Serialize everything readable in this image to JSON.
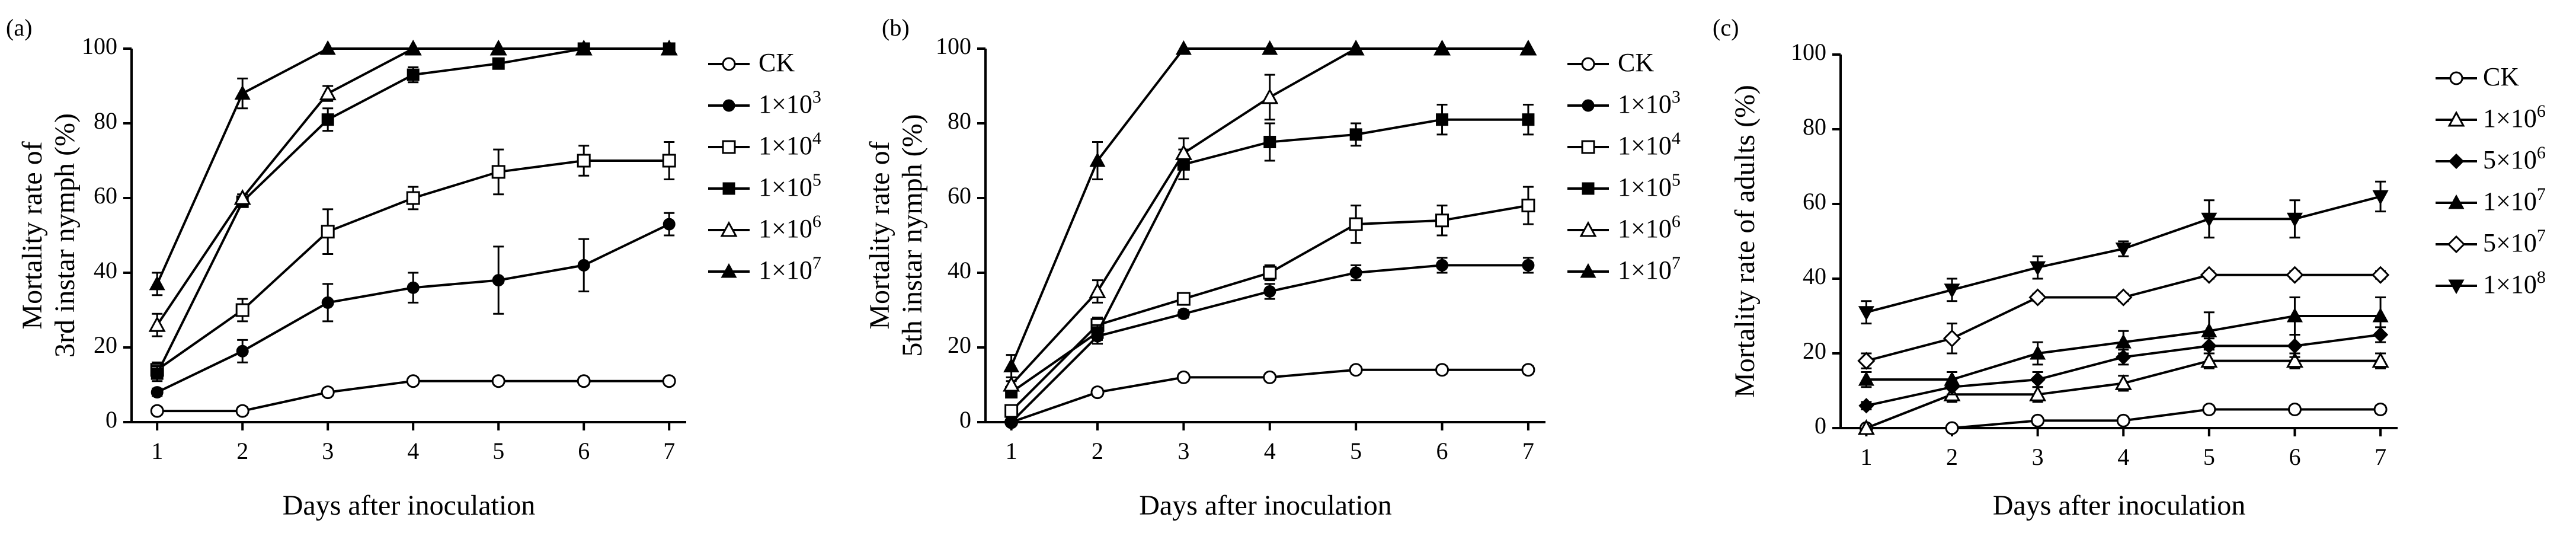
{
  "chart_data": [
    {
      "type": "line",
      "panel_label": "(a)",
      "xlabel": "Days after inoculation",
      "ylabel": "Mortality rate of 3rd instar nymph (%)",
      "ylabel_lines": [
        "Mortality rate of",
        "3rd instar nymph  (%)"
      ],
      "x": [
        1,
        2,
        3,
        4,
        5,
        6,
        7
      ],
      "xticks": [
        "1",
        "2",
        "3",
        "4",
        "5",
        "6",
        "7"
      ],
      "yticks": [
        "0",
        "20",
        "40",
        "60",
        "80",
        "100"
      ],
      "xlim": [
        0.7,
        7.2
      ],
      "ylim": [
        0,
        100
      ],
      "legend_position": "right",
      "series": [
        {
          "name": "CK",
          "label_base": "CK",
          "label_exp": "",
          "marker": "circle-open",
          "values": [
            3,
            3,
            8,
            11,
            11,
            11,
            11
          ],
          "errors": [
            1,
            1,
            1,
            1,
            1,
            1,
            1
          ]
        },
        {
          "name": "1×10³",
          "label_base": "1×10",
          "label_exp": "3",
          "marker": "circle-filled",
          "values": [
            8,
            19,
            32,
            36,
            38,
            42,
            53
          ],
          "errors": [
            1,
            3,
            5,
            4,
            9,
            7,
            3
          ]
        },
        {
          "name": "1×10⁴",
          "label_base": "1×10",
          "label_exp": "4",
          "marker": "square-open",
          "values": [
            14,
            30,
            51,
            60,
            67,
            70,
            70
          ],
          "errors": [
            2,
            3,
            6,
            3,
            6,
            4,
            5
          ]
        },
        {
          "name": "1×10⁵",
          "label_base": "1×10",
          "label_exp": "5",
          "marker": "square-filled",
          "values": [
            13,
            59,
            81,
            93,
            96,
            100,
            100
          ],
          "errors": [
            2,
            1,
            3,
            2,
            1,
            0,
            0
          ]
        },
        {
          "name": "1×10⁶",
          "label_base": "1×10",
          "label_exp": "6",
          "marker": "triangle-open",
          "values": [
            26,
            60,
            88,
            100,
            100,
            100,
            100
          ],
          "errors": [
            3,
            1,
            2,
            0,
            0,
            0,
            0
          ]
        },
        {
          "name": "1×10⁷",
          "label_base": "1×10",
          "label_exp": "7",
          "marker": "triangle-filled",
          "values": [
            37,
            88,
            100,
            100,
            100,
            100,
            100
          ],
          "errors": [
            3,
            4,
            0,
            0,
            0,
            0,
            0
          ]
        }
      ]
    },
    {
      "type": "line",
      "panel_label": "(b)",
      "xlabel": "Days after inoculation",
      "ylabel": "Mortality rate of 5th instar nymph (%)",
      "ylabel_lines": [
        "Mortality rate of",
        "5th instar nymph  (%)"
      ],
      "x": [
        1,
        2,
        3,
        4,
        5,
        6,
        7
      ],
      "xticks": [
        "1",
        "2",
        "3",
        "4",
        "5",
        "6",
        "7"
      ],
      "yticks": [
        "0",
        "20",
        "40",
        "60",
        "80",
        "100"
      ],
      "xlim": [
        0.7,
        7.2
      ],
      "ylim": [
        0,
        100
      ],
      "legend_position": "right",
      "series": [
        {
          "name": "CK",
          "label_base": "CK",
          "label_exp": "",
          "marker": "circle-open",
          "values": [
            0,
            8,
            12,
            12,
            14,
            14,
            14
          ],
          "errors": [
            0,
            1,
            1,
            1,
            1,
            1,
            1
          ]
        },
        {
          "name": "1×10³",
          "label_base": "1×10",
          "label_exp": "3",
          "marker": "circle-filled",
          "values": [
            0,
            23,
            29,
            35,
            40,
            42,
            42
          ],
          "errors": [
            0,
            2,
            1,
            2,
            2,
            2,
            2
          ]
        },
        {
          "name": "1×10⁴",
          "label_base": "1×10",
          "label_exp": "4",
          "marker": "square-open",
          "values": [
            3,
            26,
            33,
            40,
            53,
            54,
            58
          ],
          "errors": [
            1,
            2,
            1,
            2,
            5,
            4,
            5
          ]
        },
        {
          "name": "1×10⁵",
          "label_base": "1×10",
          "label_exp": "5",
          "marker": "square-filled",
          "values": [
            8,
            24,
            69,
            75,
            77,
            81,
            81
          ],
          "errors": [
            1,
            2,
            4,
            5,
            3,
            4,
            4
          ]
        },
        {
          "name": "1×10⁶",
          "label_base": "1×10",
          "label_exp": "6",
          "marker": "triangle-open",
          "values": [
            10,
            35,
            72,
            87,
            100,
            100,
            100
          ],
          "errors": [
            1,
            3,
            4,
            6,
            0,
            0,
            0
          ]
        },
        {
          "name": "1×10⁷",
          "label_base": "1×10",
          "label_exp": "7",
          "marker": "triangle-filled",
          "values": [
            15,
            70,
            100,
            100,
            100,
            100,
            100
          ],
          "errors": [
            3,
            5,
            0,
            0,
            0,
            0,
            0
          ]
        }
      ]
    },
    {
      "type": "line",
      "panel_label": "(c)",
      "xlabel": "Days after inoculation",
      "ylabel": "Mortality rate of adults (%)",
      "ylabel_lines": [
        "Mortality rate of adults  (%)"
      ],
      "x": [
        1,
        2,
        3,
        4,
        5,
        6,
        7
      ],
      "xticks": [
        "1",
        "2",
        "3",
        "4",
        "5",
        "6",
        "7"
      ],
      "yticks": [
        "0",
        "20",
        "40",
        "60",
        "80",
        "100"
      ],
      "xlim": [
        0.7,
        7.2
      ],
      "ylim": [
        0,
        100
      ],
      "legend_position": "right",
      "series": [
        {
          "name": "CK",
          "label_base": "CK",
          "label_exp": "",
          "marker": "circle-open",
          "values": [
            0,
            0,
            2,
            2,
            5,
            5,
            5
          ],
          "errors": [
            0,
            0,
            1,
            1,
            1,
            1,
            1
          ]
        },
        {
          "name": "1×10⁶",
          "label_base": "1×10",
          "label_exp": "6",
          "marker": "triangle-open",
          "values": [
            0,
            9,
            9,
            12,
            18,
            18,
            18
          ],
          "errors": [
            0,
            2,
            2,
            2,
            2,
            2,
            2
          ]
        },
        {
          "name": "5×10⁶",
          "label_base": "5×10",
          "label_exp": "6",
          "marker": "diamond-filled",
          "values": [
            6,
            11,
            13,
            19,
            22,
            22,
            25
          ],
          "errors": [
            1,
            2,
            2,
            2,
            2,
            3,
            2
          ]
        },
        {
          "name": "1×10⁷",
          "label_base": "1×10",
          "label_exp": "7",
          "marker": "triangle-filled",
          "values": [
            13,
            13,
            20,
            23,
            26,
            30,
            30
          ],
          "errors": [
            2,
            2,
            3,
            3,
            5,
            5,
            5
          ]
        },
        {
          "name": "5×10⁷",
          "label_base": "5×10",
          "label_exp": "7",
          "marker": "diamond-open",
          "values": [
            18,
            24,
            35,
            35,
            41,
            41,
            41
          ],
          "errors": [
            2,
            4,
            1,
            1,
            1,
            1,
            1
          ]
        },
        {
          "name": "1×10⁸",
          "label_base": "1×10",
          "label_exp": "8",
          "marker": "triangle-down-filled",
          "values": [
            31,
            37,
            43,
            48,
            56,
            56,
            62
          ],
          "errors": [
            3,
            3,
            3,
            2,
            5,
            5,
            4
          ]
        }
      ]
    }
  ]
}
